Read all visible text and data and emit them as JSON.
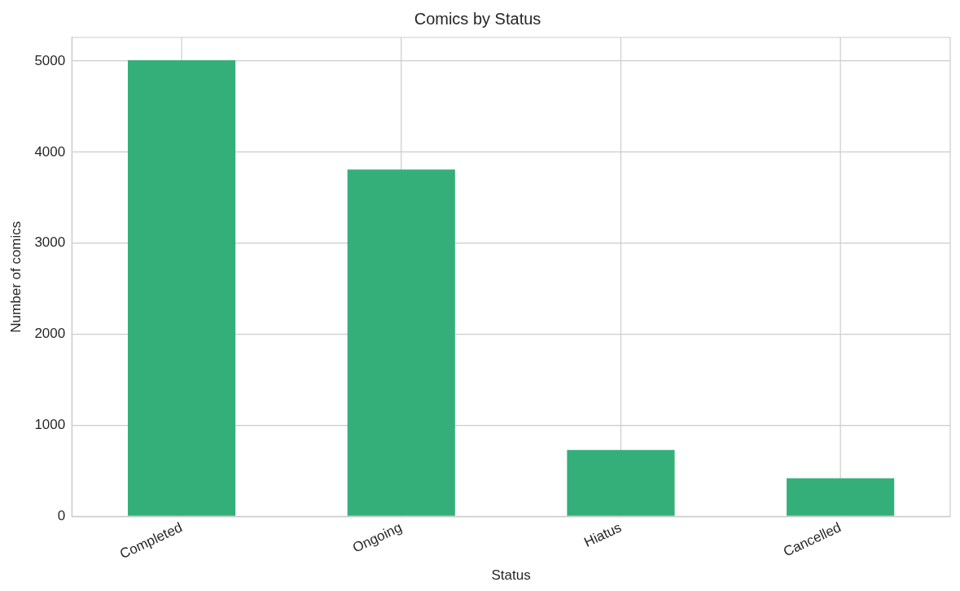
{
  "chart_data": {
    "type": "bar",
    "title": "Comics by Status",
    "xlabel": "Status",
    "ylabel": "Number of comics",
    "categories": [
      "Completed",
      "Ongoing",
      "Hiatus",
      "Cancelled"
    ],
    "values": [
      5010,
      3810,
      730,
      420
    ],
    "color": "#34af7a",
    "ylim": [
      0,
      5260
    ],
    "yticks": [
      0,
      1000,
      2000,
      3000,
      4000,
      5000
    ],
    "grid": true,
    "legend": false
  }
}
